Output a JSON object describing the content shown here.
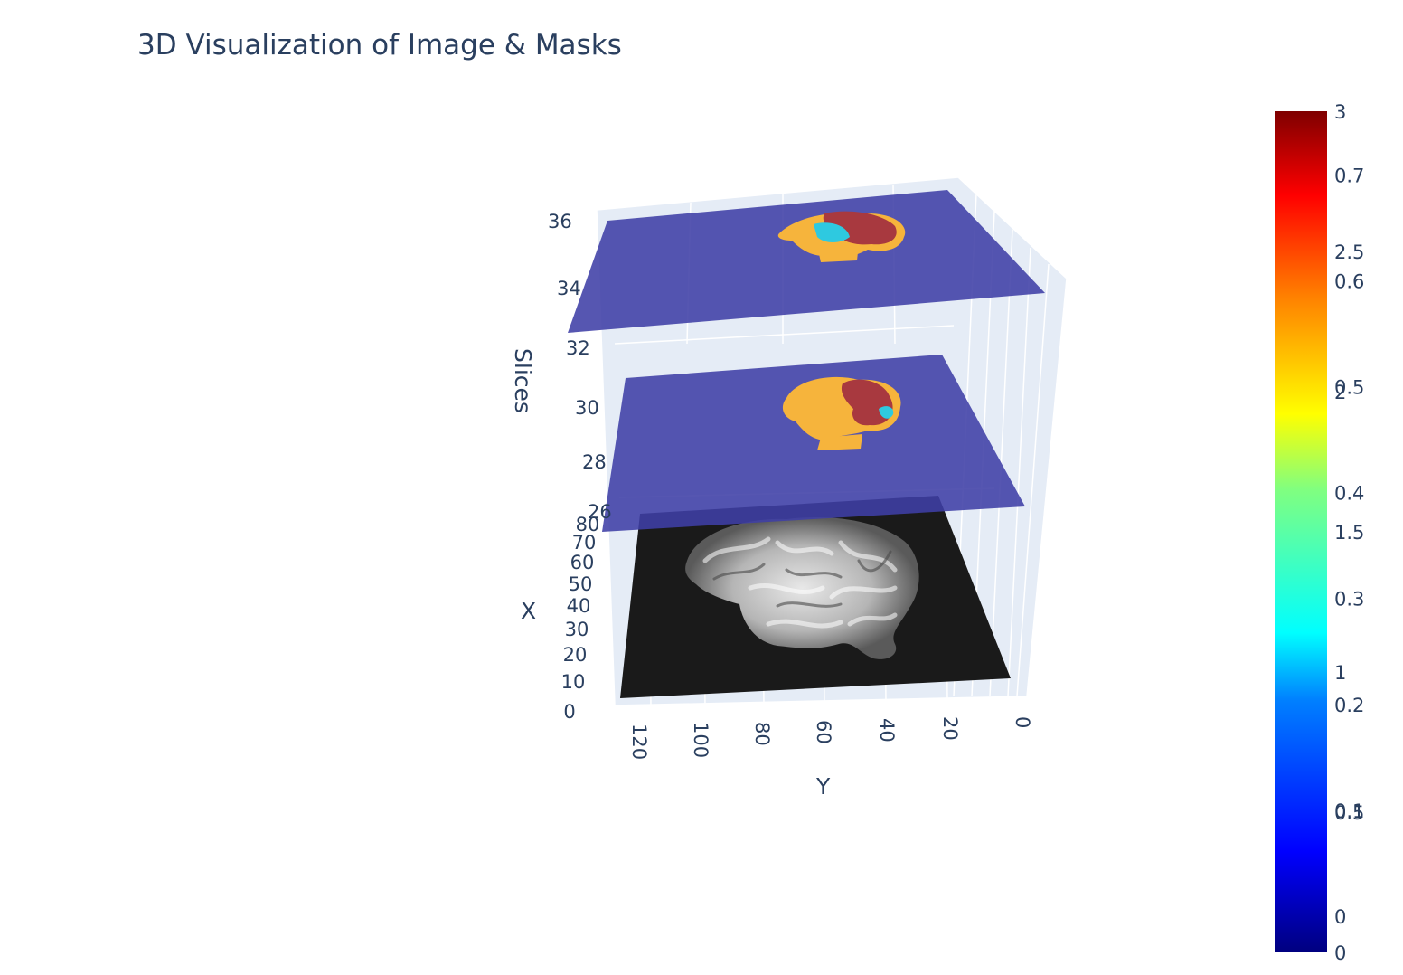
{
  "chart_data": {
    "type": "3d-surface-slices",
    "title": "3D Visualization of Image & Masks",
    "axes": {
      "x": {
        "label": "X",
        "ticks": [
          "0",
          "10",
          "20",
          "30",
          "40",
          "50",
          "60",
          "70",
          "80"
        ]
      },
      "y": {
        "label": "Y",
        "ticks": [
          "120",
          "100",
          "80",
          "60",
          "40",
          "20",
          "0"
        ]
      },
      "z": {
        "label": "Slices",
        "ticks": [
          "26",
          "28",
          "30",
          "32",
          "34",
          "36"
        ]
      }
    },
    "slices": [
      {
        "name": "image",
        "slice": 26,
        "colorscale": "gray"
      },
      {
        "name": "mask",
        "slice": 30,
        "colorscale": "jet"
      },
      {
        "name": "mask",
        "slice": 36,
        "colorscale": "jet"
      }
    ],
    "colorbar": {
      "colorscale": "jet",
      "ticks_set_a": [
        "3",
        "2.5",
        "2",
        "1.5",
        "1",
        "0.5",
        "0"
      ],
      "ticks_set_b": [
        "0.7",
        "0.6",
        "0.5",
        "0.4",
        "0.3",
        "0.2",
        "0.1",
        "0"
      ]
    }
  },
  "colors": {
    "plane": "#3f3fa6",
    "grid": "#dfe4f2",
    "scene_bg": "#e5ecf6",
    "tumor_edema": "#f6b43c",
    "tumor_core": "#a8393f",
    "tumor_enhancing": "#2ec9e0",
    "brain_bg": "#1a1a1a"
  }
}
